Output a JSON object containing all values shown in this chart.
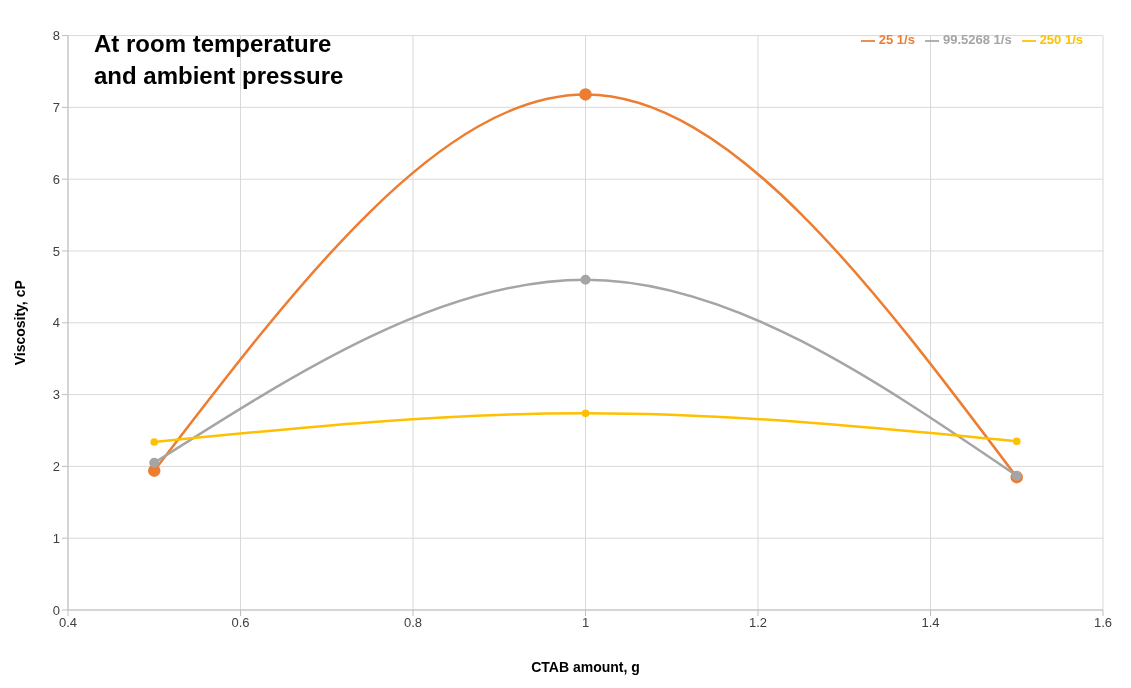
{
  "chart_data": {
    "type": "line",
    "xlabel": "CTAB amount, g",
    "ylabel": "Viscosity, cP",
    "annotations": [
      "At room temperature and ambient pressure"
    ],
    "x": [
      0.5,
      1,
      1.5
    ],
    "series": [
      {
        "name": "25 1/s",
        "color": "#ed7d31",
        "values": [
          1.94,
          7.18,
          1.85
        ]
      },
      {
        "name": "99.5268 1/s",
        "color": "#a5a5a5",
        "values": [
          2.05,
          4.6,
          1.87
        ]
      },
      {
        "name": "250 1/s",
        "color": "#ffc000",
        "values": [
          2.34,
          2.74,
          2.35
        ]
      }
    ],
    "xlim": [
      0.4,
      1.6
    ],
    "xticks": [
      0.4,
      0.6,
      0.8,
      1,
      1.2,
      1.4,
      1.6
    ],
    "ylim": [
      0,
      8
    ],
    "yticks": [
      0,
      1,
      2,
      3,
      4,
      5,
      6,
      7,
      8
    ],
    "grid": true,
    "legend": "top right",
    "marker": "circle",
    "line_style": "solid"
  }
}
